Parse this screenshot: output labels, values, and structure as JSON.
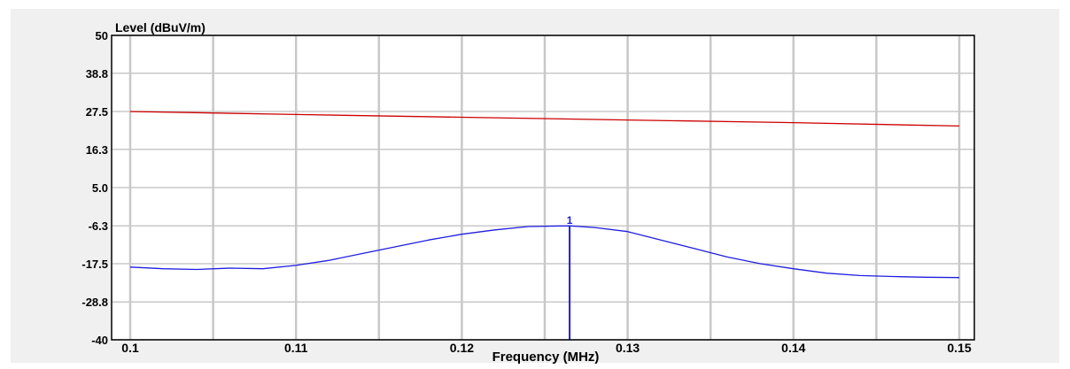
{
  "chart_data": {
    "type": "line",
    "title": "",
    "xlabel": "Frequency (MHz)",
    "ylabel": "Level (dBuV/m)",
    "xlim": [
      0.1,
      0.15
    ],
    "ylim": [
      -40,
      50
    ],
    "grid": true,
    "x_ticks": [
      0.1,
      0.11,
      0.12,
      0.13,
      0.14,
      0.15
    ],
    "x_tick_labels": [
      "0.1",
      "0.11",
      "0.12",
      "0.13",
      "0.14",
      "0.15"
    ],
    "x_minor_gridlines": [
      0.105,
      0.115,
      0.125,
      0.135,
      0.145
    ],
    "y_ticks": [
      50,
      38.8,
      27.5,
      16.3,
      5.0,
      -6.3,
      -17.5,
      -28.8,
      -40
    ],
    "y_tick_labels": [
      "50",
      "38.8",
      "27.5",
      "16.3",
      "5.0",
      "-6.3",
      "-17.5",
      "-28.8",
      "-40"
    ],
    "series": [
      {
        "color": "#cc0000",
        "x": [
          0.1,
          0.11,
          0.12,
          0.13,
          0.14,
          0.15
        ],
        "y": [
          27.5,
          26.6,
          25.8,
          25.0,
          24.2,
          23.2
        ]
      },
      {
        "color": "#1e1ee0",
        "x": [
          0.1,
          0.102,
          0.104,
          0.106,
          0.108,
          0.11,
          0.112,
          0.114,
          0.116,
          0.118,
          0.12,
          0.122,
          0.124,
          0.1265,
          0.128,
          0.13,
          0.132,
          0.134,
          0.136,
          0.138,
          0.14,
          0.142,
          0.144,
          0.146,
          0.148,
          0.15
        ],
        "y": [
          -18.5,
          -19.0,
          -19.2,
          -18.8,
          -19.0,
          -18.0,
          -16.5,
          -14.5,
          -12.5,
          -10.5,
          -8.8,
          -7.5,
          -6.5,
          -6.3,
          -6.8,
          -8.0,
          -10.5,
          -13.0,
          -15.5,
          -17.5,
          -19.0,
          -20.3,
          -21.0,
          -21.3,
          -21.5,
          -21.6
        ]
      }
    ],
    "markers": [
      {
        "label": "1",
        "x": 0.1265,
        "y": -6.3,
        "color": "#1e1ee0"
      }
    ]
  }
}
